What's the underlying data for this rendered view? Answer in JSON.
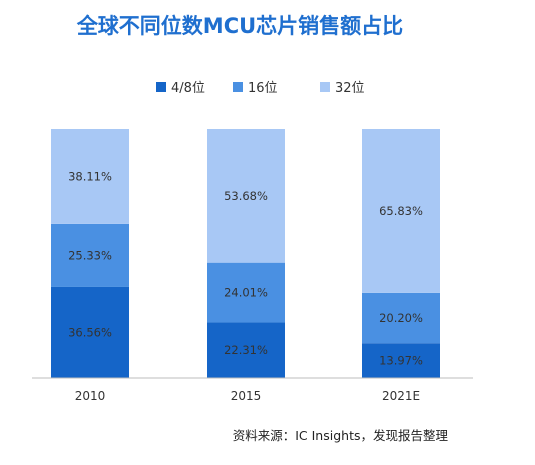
{
  "source_note": "资料来源：IC Insights，发现报告整理",
  "chart_data": {
    "type": "bar",
    "stacked": true,
    "title": "全球不同位数MCU芯片销售额占比",
    "xlabel": "",
    "ylabel": "",
    "ylim": [
      0,
      100
    ],
    "grid": false,
    "legend_position": "top-center",
    "categories": [
      "2010",
      "2015",
      "2021E"
    ],
    "series": [
      {
        "name": "4/8位",
        "color": "#1565c8",
        "values": [
          36.56,
          22.31,
          13.97
        ],
        "labels": [
          "36.56%",
          "22.31%",
          "13.97%"
        ]
      },
      {
        "name": "16位",
        "color": "#4a90e2",
        "values": [
          25.33,
          24.01,
          20.2
        ],
        "labels": [
          "25.33%",
          "24.01%",
          "20.20%"
        ]
      },
      {
        "name": "32位",
        "color": "#a8c8f5",
        "values": [
          38.11,
          53.68,
          65.83
        ],
        "labels": [
          "38.11%",
          "53.68%",
          "65.83%"
        ]
      }
    ]
  }
}
